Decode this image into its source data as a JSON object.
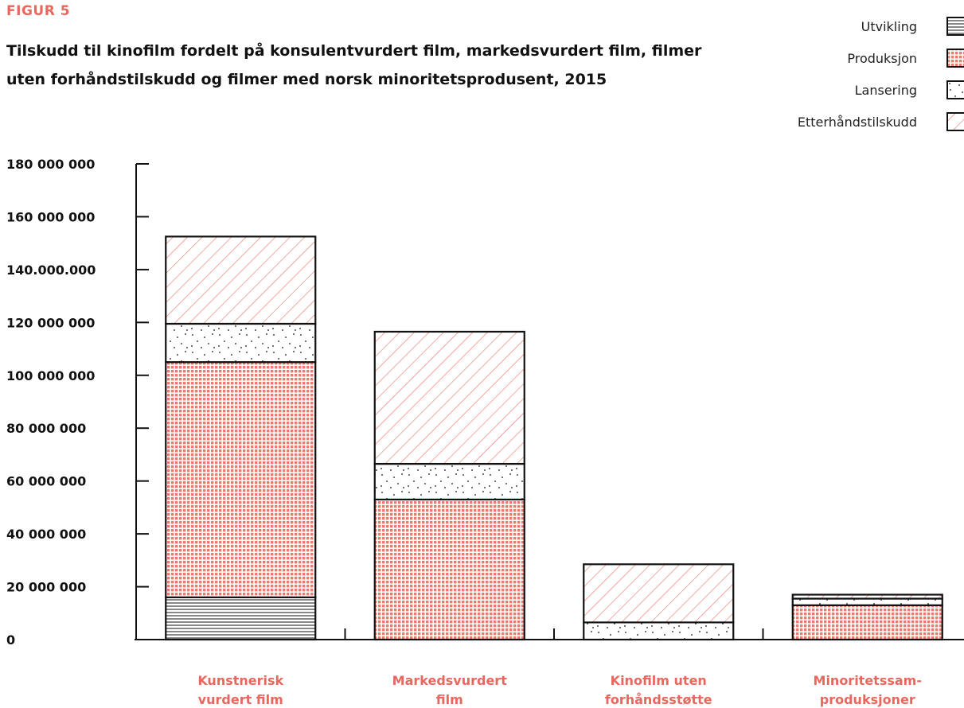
{
  "figure_label": "FIGUR 5",
  "title_line1": "Tilskudd til kinofilm fordelt på konsulentvurdert film, markedsvurdert film, filmer",
  "title_line2": "uten forhåndstilskudd og filmer med norsk minoritetsprodusent, 2015",
  "colors": {
    "accent": "#e8675e",
    "stroke": "#111111"
  },
  "chart_data": {
    "type": "bar",
    "stacked": true,
    "categories": [
      [
        "Kunstnerisk",
        "vurdert film"
      ],
      [
        "Markedsvurdert",
        "film"
      ],
      [
        "Kinofilm uten",
        "forhåndsstøtte"
      ],
      [
        "Minoritetssam-",
        "produksjoner"
      ]
    ],
    "series": [
      {
        "name": "Utvikling",
        "pattern": "hlines",
        "values": [
          16000000,
          0,
          0,
          0
        ]
      },
      {
        "name": "Produksjon",
        "pattern": "grid",
        "values": [
          89000000,
          53000000,
          0,
          13000000
        ]
      },
      {
        "name": "Lansering",
        "pattern": "dots",
        "values": [
          14500000,
          13500000,
          6500000,
          2500000
        ]
      },
      {
        "name": "Etterhåndstilskudd",
        "pattern": "diagonal",
        "values": [
          33000000,
          50000000,
          22000000,
          1500000
        ]
      }
    ],
    "ylim": [
      0,
      180000000
    ],
    "yticks": [
      {
        "value": 0,
        "label": "0"
      },
      {
        "value": 20000000,
        "label": "20 000 000"
      },
      {
        "value": 40000000,
        "label": "40 000 000"
      },
      {
        "value": 60000000,
        "label": "60 000 000"
      },
      {
        "value": 80000000,
        "label": "80 000 000"
      },
      {
        "value": 100000000,
        "label": "100 000 000"
      },
      {
        "value": 120000000,
        "label": "120 000 000"
      },
      {
        "value": 140000000,
        "label": "140.000.000"
      },
      {
        "value": 160000000,
        "label": "160 000 000"
      },
      {
        "value": 180000000,
        "label": "180 000 000"
      }
    ],
    "grid": false,
    "legend_position": "top-right"
  }
}
